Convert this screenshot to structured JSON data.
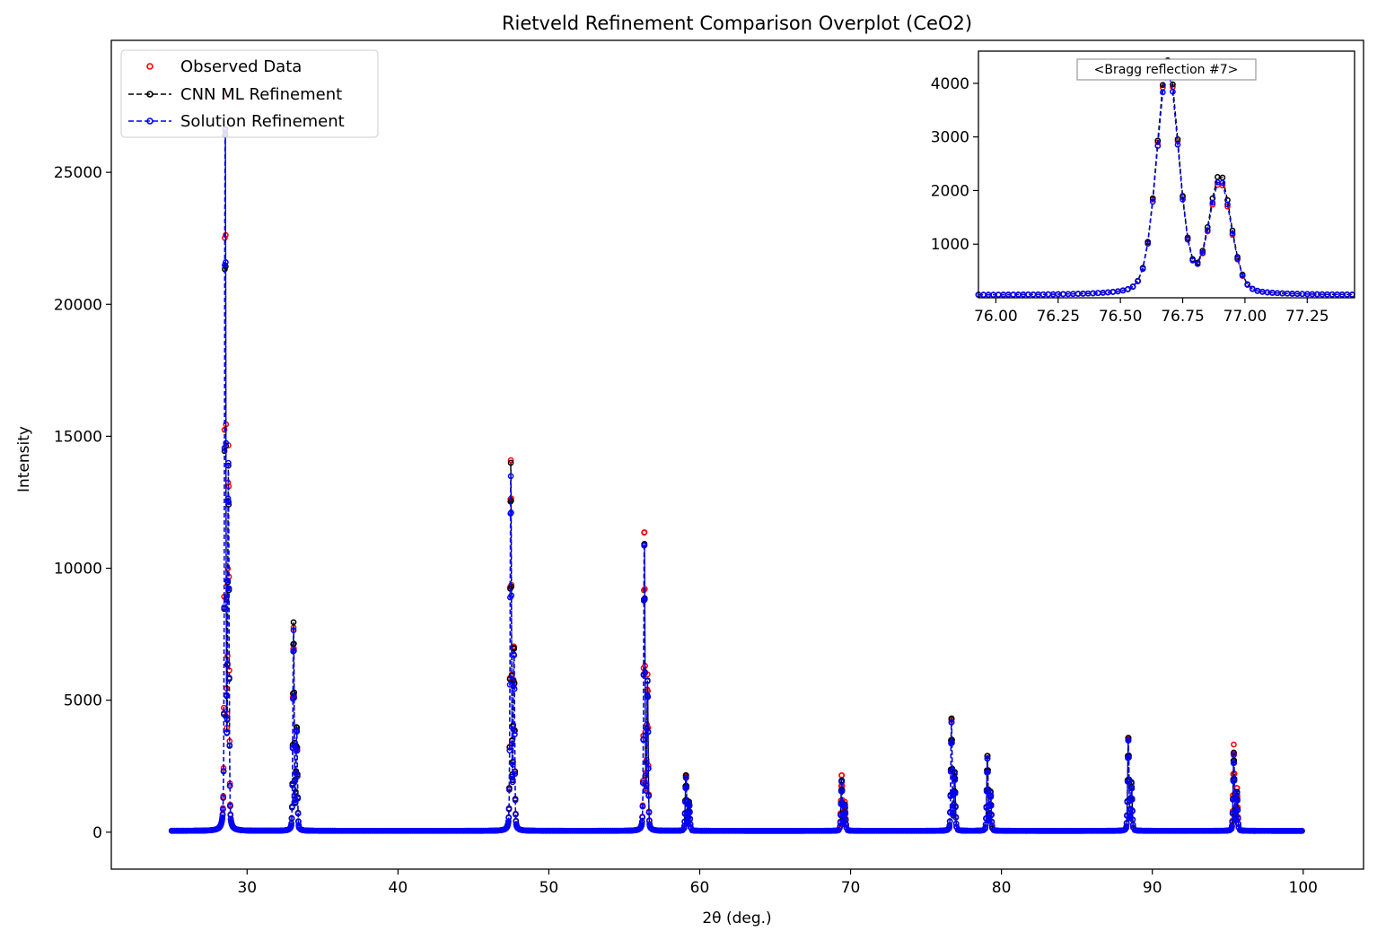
{
  "chart_data": [
    {
      "type": "scatter",
      "title": "Rietveld Refinement Comparison Overplot (CeO2)",
      "xlabel": "2θ (deg.)",
      "ylabel": "Intensity",
      "xlim": [
        21,
        104
      ],
      "ylim": [
        -1400,
        30000
      ],
      "xticks": [
        30,
        40,
        50,
        60,
        70,
        80,
        90,
        100
      ],
      "yticks": [
        0,
        5000,
        10000,
        15000,
        20000,
        25000
      ],
      "grid": false,
      "legend_position": "top-left",
      "x_range": [
        25,
        100
      ],
      "background": 50,
      "peaks": [
        {
          "x": 28.55,
          "observed": 28500,
          "cnn": 27000,
          "solution": 27200
        },
        {
          "x": 33.08,
          "observed": 7700,
          "cnn": 7900,
          "solution": 7600
        },
        {
          "x": 47.48,
          "observed": 14000,
          "cnn": 13900,
          "solution": 13400
        },
        {
          "x": 56.33,
          "observed": 11600,
          "cnn": 11150,
          "solution": 11100
        },
        {
          "x": 59.09,
          "observed": 2150,
          "cnn": 2200,
          "solution": 2100
        },
        {
          "x": 69.41,
          "observed": 2200,
          "cnn": 2000,
          "solution": 1950
        },
        {
          "x": 76.69,
          "observed": 4350,
          "cnn": 4400,
          "solution": 4250
        },
        {
          "x": 79.07,
          "observed": 2950,
          "cnn": 2950,
          "solution": 2850
        },
        {
          "x": 88.41,
          "observed": 3600,
          "cnn": 3650,
          "solution": 3550
        },
        {
          "x": 95.4,
          "observed": 3300,
          "cnn": 3000,
          "solution": 2900
        }
      ],
      "series": [
        {
          "name": "Observed Data",
          "color": "#ff0000",
          "style": "markers"
        },
        {
          "name": "CNN ML Refinement",
          "color": "#000000",
          "style": "dashed-line-markers"
        },
        {
          "name": "Solution Refinement",
          "color": "#0000ff",
          "style": "dashed-line-markers"
        }
      ]
    },
    {
      "type": "line",
      "annotation": "<Bragg reflection #7>",
      "xlim": [
        75.93,
        77.44
      ],
      "ylim": [
        0,
        4600
      ],
      "xticks": [
        76.0,
        76.25,
        76.5,
        76.75,
        77.0,
        77.25
      ],
      "yticks": [
        1000,
        2000,
        3000,
        4000
      ],
      "background": 50,
      "peaks": [
        {
          "x": 76.69,
          "observed": 4350,
          "cnn": 4400,
          "solution": 4250
        },
        {
          "x": 76.9,
          "observed": 2100,
          "cnn": 2250,
          "solution": 2150
        }
      ]
    }
  ]
}
